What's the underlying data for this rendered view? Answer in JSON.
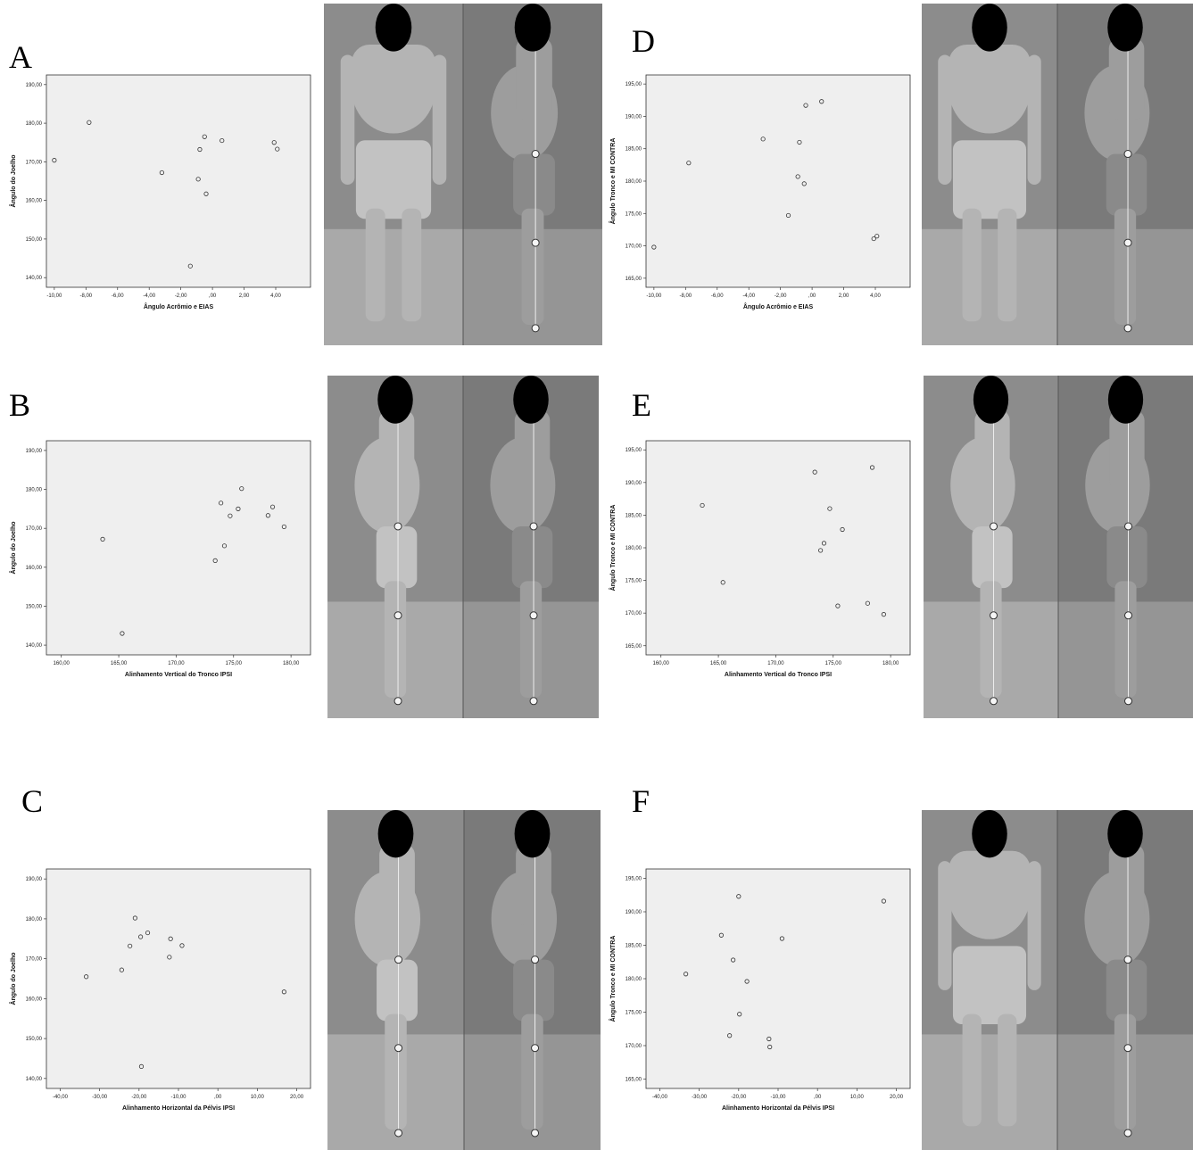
{
  "panels": [
    {
      "letter": "A",
      "chart_data": {
        "type": "scatter",
        "xlabel": "Ângulo Acrômio e EIAS",
        "ylabel": "Ângulo do Joelho",
        "xticks": [
          "-10,00",
          "-8,00",
          "-6,00",
          "-4,00",
          "-2,00",
          ",00",
          "2,00",
          "4,00"
        ],
        "yticks": [
          "140,00",
          "150,00",
          "160,00",
          "170,00",
          "180,00",
          "190,00"
        ],
        "xlim": [
          -10.5,
          6.2
        ],
        "ylim": [
          137.5,
          192.5
        ],
        "x": [
          -10.0,
          -7.8,
          -3.2,
          -1.4,
          -0.9,
          -0.8,
          -0.5,
          -0.4,
          0.6,
          3.9,
          4.1
        ],
        "y": [
          170.4,
          180.2,
          167.2,
          143.0,
          165.5,
          173.2,
          176.5,
          161.7,
          175.5,
          175.0,
          173.3
        ],
        "grid": false
      },
      "photo": {
        "views": [
          "frontal",
          "lateral"
        ]
      }
    },
    {
      "letter": "B",
      "chart_data": {
        "type": "scatter",
        "xlabel": "Alinhamento Vertical do Tronco IPSI",
        "ylabel": "Ângulo do Joelho",
        "xticks": [
          "160,00",
          "165,00",
          "170,00",
          "175,00",
          "180,00"
        ],
        "xtick_values": [
          160,
          165,
          170,
          175,
          180
        ],
        "yticks": [
          "140,00",
          "150,00",
          "160,00",
          "170,00",
          "180,00",
          "190,00"
        ],
        "xlim": [
          158.7,
          181.7
        ],
        "ylim": [
          137.5,
          192.5
        ],
        "x": [
          163.6,
          165.3,
          173.4,
          173.9,
          174.2,
          174.7,
          175.4,
          175.7,
          178.0,
          178.4,
          179.4
        ],
        "y": [
          167.2,
          143.0,
          161.7,
          176.5,
          165.5,
          173.2,
          175.0,
          180.2,
          173.3,
          175.5,
          170.4
        ],
        "grid": false
      },
      "photo": {
        "views": [
          "lateral",
          "lateral"
        ]
      }
    },
    {
      "letter": "C",
      "chart_data": {
        "type": "scatter",
        "xlabel": "Alinhamento Horizontal da Pélvis IPSI",
        "ylabel": "Ângulo do Joelho",
        "xticks": [
          "-40,00",
          "-30,00",
          "-20,00",
          "-10,00",
          ",00",
          "10,00",
          "20,00"
        ],
        "xtick_values": [
          -40,
          -30,
          -20,
          -10,
          0,
          10,
          20
        ],
        "yticks": [
          "140,00",
          "150,00",
          "160,00",
          "170,00",
          "180,00",
          "190,00"
        ],
        "xlim": [
          -43.5,
          23.5
        ],
        "ylim": [
          137.5,
          192.5
        ],
        "x": [
          -33.4,
          -24.4,
          -22.3,
          -21.0,
          -19.6,
          -19.4,
          -17.8,
          -12.3,
          -12.0,
          -9.1,
          16.8
        ],
        "y": [
          165.5,
          167.2,
          173.2,
          180.2,
          175.5,
          143.0,
          176.5,
          170.4,
          175.0,
          173.3,
          161.7
        ],
        "grid": false
      },
      "photo": {
        "views": [
          "lateral",
          "lateral"
        ]
      }
    },
    {
      "letter": "D",
      "chart_data": {
        "type": "scatter",
        "xlabel": "Ângulo Acrômio e EIAS",
        "ylabel": "Ângulo Tronco e MI CONTRA",
        "xticks": [
          "-10,00",
          "-8,00",
          "-6,00",
          "-4,00",
          "-2,00",
          ",00",
          "2,00",
          "4,00"
        ],
        "yticks": [
          "165,00",
          "170,00",
          "175,00",
          "180,00",
          "185,00",
          "190,00",
          "195,00"
        ],
        "xlim": [
          -10.5,
          6.2
        ],
        "ylim": [
          163.6,
          196.4
        ],
        "x": [
          -10.0,
          -7.8,
          -3.1,
          -1.5,
          -0.9,
          -0.8,
          -0.5,
          -0.4,
          0.6,
          3.9,
          4.1
        ],
        "y": [
          169.8,
          182.8,
          186.5,
          174.7,
          180.7,
          186.0,
          179.6,
          191.7,
          192.3,
          171.1,
          171.5
        ],
        "grid": false
      },
      "photo": {
        "views": [
          "frontal",
          "lateral"
        ]
      }
    },
    {
      "letter": "E",
      "chart_data": {
        "type": "scatter",
        "xlabel": "Alinhamento Vertical do Tronco IPSI",
        "ylabel": "Ângulo Tronco e MI CONTRA",
        "xticks": [
          "160,00",
          "165,00",
          "170,00",
          "175,00",
          "180,00"
        ],
        "xtick_values": [
          160,
          165,
          170,
          175,
          180
        ],
        "yticks": [
          "165,00",
          "170,00",
          "175,00",
          "180,00",
          "185,00",
          "190,00",
          "195,00"
        ],
        "xlim": [
          158.7,
          181.7
        ],
        "ylim": [
          163.6,
          196.4
        ],
        "x": [
          163.6,
          165.4,
          173.4,
          173.9,
          174.2,
          174.7,
          175.4,
          175.8,
          178.0,
          178.4,
          179.4
        ],
        "y": [
          186.5,
          174.7,
          191.6,
          179.6,
          180.7,
          186.0,
          171.1,
          182.8,
          171.5,
          192.3,
          169.8
        ],
        "grid": false
      },
      "photo": {
        "views": [
          "lateral",
          "lateral"
        ]
      }
    },
    {
      "letter": "F",
      "chart_data": {
        "type": "scatter",
        "xlabel": "Alinhamento Horizontal da Pélvis IPSI",
        "ylabel": "Ângulo Tronco e MI CONTRA",
        "xticks": [
          "-40,00",
          "-30,00",
          "-20,00",
          "-10,00",
          ",00",
          "10,00",
          "20,00"
        ],
        "xtick_values": [
          -40,
          -30,
          -20,
          -10,
          0,
          10,
          20
        ],
        "yticks": [
          "165,00",
          "170,00",
          "175,00",
          "180,00",
          "185,00",
          "190,00",
          "195,00"
        ],
        "xlim": [
          -43.5,
          23.5
        ],
        "ylim": [
          163.6,
          196.4
        ],
        "x": [
          -33.4,
          -24.4,
          -22.3,
          -21.4,
          -20.0,
          -19.8,
          -17.9,
          -12.3,
          -12.1,
          -9.0,
          16.8
        ],
        "y": [
          180.7,
          186.5,
          171.5,
          182.8,
          192.3,
          174.7,
          179.6,
          171.0,
          169.8,
          186.0,
          191.6
        ],
        "grid": false
      },
      "photo": {
        "views": [
          "frontal",
          "lateral"
        ]
      }
    }
  ]
}
